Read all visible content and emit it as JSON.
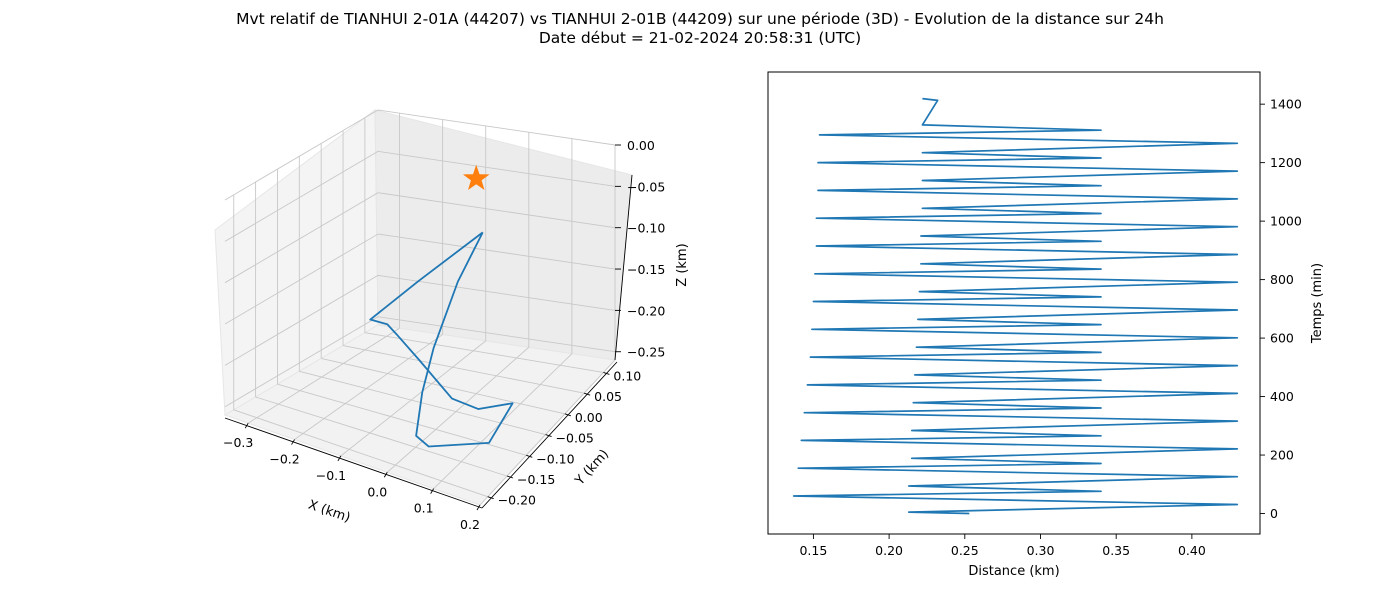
{
  "figure": {
    "title_line1": "Mvt relatif de TIANHUI 2-01A (44207) vs TIANHUI 2-01B (44209) sur une période (3D) - Evolution de la distance sur 24h",
    "title_line2": "Date début = 21-02-2024 20:58:31 (UTC)"
  },
  "chart_data": [
    {
      "type": "line",
      "subtype": "3d",
      "xlabel": "X (km)",
      "ylabel": "Y (km)",
      "zlabel": "Z (km)",
      "x_ticks": [
        "−0.3",
        "−0.2",
        "−0.1",
        "0.0",
        "0.1",
        "0.2"
      ],
      "y_ticks": [
        "0.10",
        "0.05",
        "0.00",
        "−0.05",
        "−0.10",
        "−0.15",
        "−0.20"
      ],
      "z_ticks": [
        "0.00",
        "−0.05",
        "−0.10",
        "−0.15",
        "−0.20",
        "−0.25"
      ],
      "xlim": [
        -0.35,
        0.2
      ],
      "ylim": [
        -0.22,
        0.13
      ],
      "zlim": [
        -0.26,
        0.0
      ],
      "grid": true,
      "series": [
        {
          "kind": "trajectory",
          "color": "#1f77b4",
          "points": [
            [
              -0.05,
              0.07,
              -0.1
            ],
            [
              -0.15,
              0.02,
              -0.15
            ],
            [
              -0.22,
              -0.02,
              -0.19
            ],
            [
              -0.22,
              0.02,
              -0.21
            ],
            [
              -0.18,
              0.0,
              -0.21
            ],
            [
              -0.1,
              -0.03,
              -0.22
            ],
            [
              0.0,
              -0.06,
              -0.24
            ],
            [
              0.05,
              -0.05,
              -0.25
            ],
            [
              0.1,
              -0.02,
              -0.25
            ],
            [
              0.1,
              -0.08,
              -0.27
            ],
            [
              0.02,
              -0.14,
              -0.26
            ],
            [
              0.01,
              -0.16,
              -0.24
            ],
            [
              -0.03,
              -0.1,
              -0.22
            ],
            [
              -0.05,
              -0.05,
              -0.19
            ],
            [
              -0.06,
              0.02,
              -0.14
            ],
            [
              -0.05,
              0.07,
              -0.1
            ]
          ]
        },
        {
          "kind": "marker",
          "marker": "star",
          "color": "#ff7f0e",
          "points": [
            [
              0.0,
              0.0,
              0.0
            ]
          ]
        }
      ]
    },
    {
      "type": "line",
      "xlabel": "Distance (km)",
      "ylabel": "Temps (min)",
      "xlim": [
        0.12,
        0.445
      ],
      "ylim": [
        -70,
        1510
      ],
      "x_ticks": [
        "0.15",
        "0.20",
        "0.25",
        "0.30",
        "0.35",
        "0.40"
      ],
      "y_ticks": [
        "0",
        "200",
        "400",
        "600",
        "800",
        "1000",
        "1200",
        "1400"
      ],
      "y_axis_side": "right",
      "series": [
        {
          "color": "#1f77b4",
          "x": [
            0.253,
            0.213,
            0.43,
            0.137,
            0.34,
            0.213,
            0.43,
            0.14,
            0.34,
            0.215,
            0.43,
            0.142,
            0.34,
            0.215,
            0.43,
            0.144,
            0.34,
            0.216,
            0.43,
            0.146,
            0.34,
            0.217,
            0.43,
            0.148,
            0.34,
            0.218,
            0.43,
            0.149,
            0.34,
            0.219,
            0.43,
            0.15,
            0.34,
            0.22,
            0.43,
            0.151,
            0.34,
            0.221,
            0.43,
            0.152,
            0.34,
            0.221,
            0.43,
            0.152,
            0.34,
            0.222,
            0.43,
            0.153,
            0.34,
            0.222,
            0.43,
            0.153,
            0.34,
            0.222,
            0.43,
            0.154,
            0.34,
            0.222,
            0.232,
            0.222
          ],
          "y": [
            0,
            5,
            31,
            60,
            76,
            94,
            126,
            155,
            171,
            189,
            221,
            250,
            266,
            284,
            316,
            345,
            361,
            379,
            411,
            440,
            456,
            474,
            506,
            535,
            551,
            569,
            601,
            630,
            646,
            664,
            696,
            725,
            741,
            759,
            791,
            820,
            836,
            854,
            886,
            915,
            931,
            949,
            981,
            1010,
            1026,
            1044,
            1076,
            1105,
            1121,
            1139,
            1171,
            1200,
            1216,
            1234,
            1266,
            1295,
            1311,
            1329,
            1413,
            1419
          ]
        }
      ]
    }
  ]
}
